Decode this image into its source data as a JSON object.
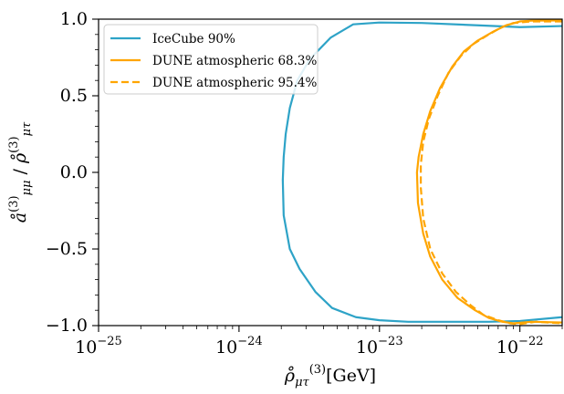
{
  "chart_data": {
    "type": "line",
    "xlabel": "ρ̊μτ(3) [GeV]",
    "ylabel": "å(3)μμ / ρ̊(3)μτ",
    "xscale": "log",
    "xlim": [
      1e-25,
      2e-22
    ],
    "ylim": [
      -1.0,
      1.0
    ],
    "x_tick_labels": [
      {
        "value": 1e-25,
        "base": "10",
        "exp": "−25"
      },
      {
        "value": 1e-24,
        "base": "10",
        "exp": "−24"
      },
      {
        "value": 1e-23,
        "base": "10",
        "exp": "−23"
      },
      {
        "value": 1e-22,
        "base": "10",
        "exp": "−22"
      }
    ],
    "y_ticks": [
      -1.0,
      -0.5,
      0.0,
      0.5,
      1.0
    ],
    "y_tick_labels": [
      "−1.0",
      "−0.5",
      "0.0",
      "0.5",
      "1.0"
    ],
    "grid": false,
    "legend_position": "top-left",
    "series": [
      {
        "name": "IceCube 90%",
        "color": "#2ea3c7",
        "dash": "solid",
        "points": [
          [
            2e-22,
            0.955
          ],
          [
            1e-22,
            0.948
          ],
          [
            5e-23,
            0.96
          ],
          [
            2e-23,
            0.975
          ],
          [
            1e-23,
            0.978
          ],
          [
            6.5e-24,
            0.966
          ],
          [
            4.5e-24,
            0.88
          ],
          [
            3.2e-24,
            0.74
          ],
          [
            2.6e-24,
            0.6
          ],
          [
            2.3e-24,
            0.42
          ],
          [
            2.15e-24,
            0.25
          ],
          [
            2.08e-24,
            0.1
          ],
          [
            2.05e-24,
            -0.05
          ],
          [
            2.08e-24,
            -0.28
          ],
          [
            2.3e-24,
            -0.5
          ],
          [
            2.7e-24,
            -0.63
          ],
          [
            3.5e-24,
            -0.78
          ],
          [
            4.6e-24,
            -0.885
          ],
          [
            6.8e-24,
            -0.945
          ],
          [
            1e-23,
            -0.965
          ],
          [
            1.6e-23,
            -0.975
          ],
          [
            3e-23,
            -0.975
          ],
          [
            6e-23,
            -0.975
          ],
          [
            1e-22,
            -0.97
          ],
          [
            2e-22,
            -0.945
          ]
        ]
      },
      {
        "name": "DUNE atmospheric 68.3%",
        "color": "#ffa500",
        "dash": "solid",
        "points": [
          [
            2e-22,
            0.992
          ],
          [
            1.2e-22,
            0.99
          ],
          [
            1e-22,
            0.985
          ],
          [
            8e-23,
            0.96
          ],
          [
            6.5e-23,
            0.92
          ],
          [
            5e-23,
            0.86
          ],
          [
            4e-23,
            0.79
          ],
          [
            3.3e-23,
            0.69
          ],
          [
            2.7e-23,
            0.55
          ],
          [
            2.3e-23,
            0.4
          ],
          [
            2.05e-23,
            0.25
          ],
          [
            1.9e-23,
            0.1
          ],
          [
            1.85e-23,
            0.0
          ],
          [
            1.88e-23,
            -0.2
          ],
          [
            2.05e-23,
            -0.4
          ],
          [
            2.3e-23,
            -0.55
          ],
          [
            2.8e-23,
            -0.7
          ],
          [
            3.6e-23,
            -0.82
          ],
          [
            4.8e-23,
            -0.9
          ],
          [
            6e-23,
            -0.95
          ],
          [
            7.5e-23,
            -0.975
          ],
          [
            9e-23,
            -0.985
          ],
          [
            1.2e-22,
            -0.975
          ],
          [
            2e-22,
            -0.98
          ]
        ]
      },
      {
        "name": "DUNE atmospheric 95.4%",
        "color": "#ffa500",
        "dash": "dashed",
        "points": [
          [
            2e-22,
            0.985
          ],
          [
            1.2e-22,
            0.985
          ],
          [
            9e-23,
            0.975
          ],
          [
            7.5e-23,
            0.95
          ],
          [
            6e-23,
            0.9
          ],
          [
            4.7e-23,
            0.84
          ],
          [
            3.8e-23,
            0.76
          ],
          [
            3.1e-23,
            0.65
          ],
          [
            2.6e-23,
            0.5
          ],
          [
            2.25e-23,
            0.35
          ],
          [
            2.05e-23,
            0.2
          ],
          [
            1.97e-23,
            0.05
          ],
          [
            1.97e-23,
            -0.1
          ],
          [
            2.05e-23,
            -0.3
          ],
          [
            2.3e-23,
            -0.5
          ],
          [
            2.8e-23,
            -0.66
          ],
          [
            3.5e-23,
            -0.78
          ],
          [
            4.5e-23,
            -0.87
          ],
          [
            5.5e-23,
            -0.93
          ],
          [
            7e-23,
            -0.965
          ],
          [
            8.5e-23,
            -0.985
          ],
          [
            1e-22,
            -0.99
          ],
          [
            1.3e-22,
            -0.975
          ],
          [
            2e-22,
            -0.985
          ]
        ]
      }
    ]
  }
}
